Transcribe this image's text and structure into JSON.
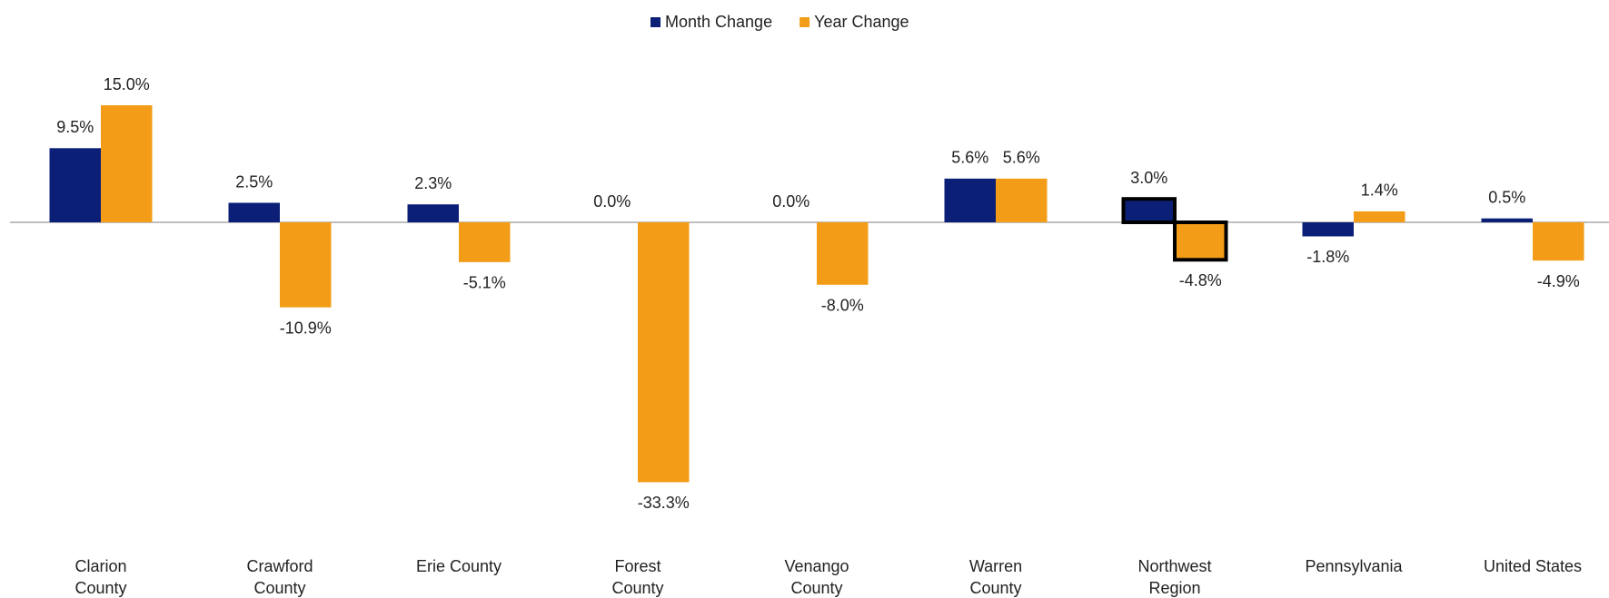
{
  "chart_data": {
    "type": "bar",
    "categories": [
      "Clarion County",
      "Crawford County",
      "Erie County",
      "Forest County",
      "Venango County",
      "Warren County",
      "Northwest Region",
      "Pennsylvania",
      "United States"
    ],
    "series": [
      {
        "name": "Month Change",
        "color": "#0b1f77",
        "values": [
          9.5,
          2.5,
          2.3,
          0.0,
          0.0,
          5.6,
          3.0,
          -1.8,
          0.5
        ],
        "value_labels": [
          "9.5%",
          "2.5%",
          "2.3%",
          "0.0%",
          "0.0%",
          "5.6%",
          "3.0%",
          "-1.8%",
          "0.5%"
        ]
      },
      {
        "name": "Year Change",
        "color": "#f29c17",
        "values": [
          15.0,
          -10.9,
          -5.1,
          -33.3,
          -8.0,
          5.6,
          -4.8,
          1.4,
          -4.9
        ],
        "value_labels": [
          "15.0%",
          "-10.9%",
          "-5.1%",
          "-33.3%",
          "-8.0%",
          "5.6%",
          "-4.8%",
          "1.4%",
          "-4.9%"
        ]
      }
    ],
    "ylim": [
      -40,
      20
    ],
    "legend": "top",
    "highlight": 6
  }
}
